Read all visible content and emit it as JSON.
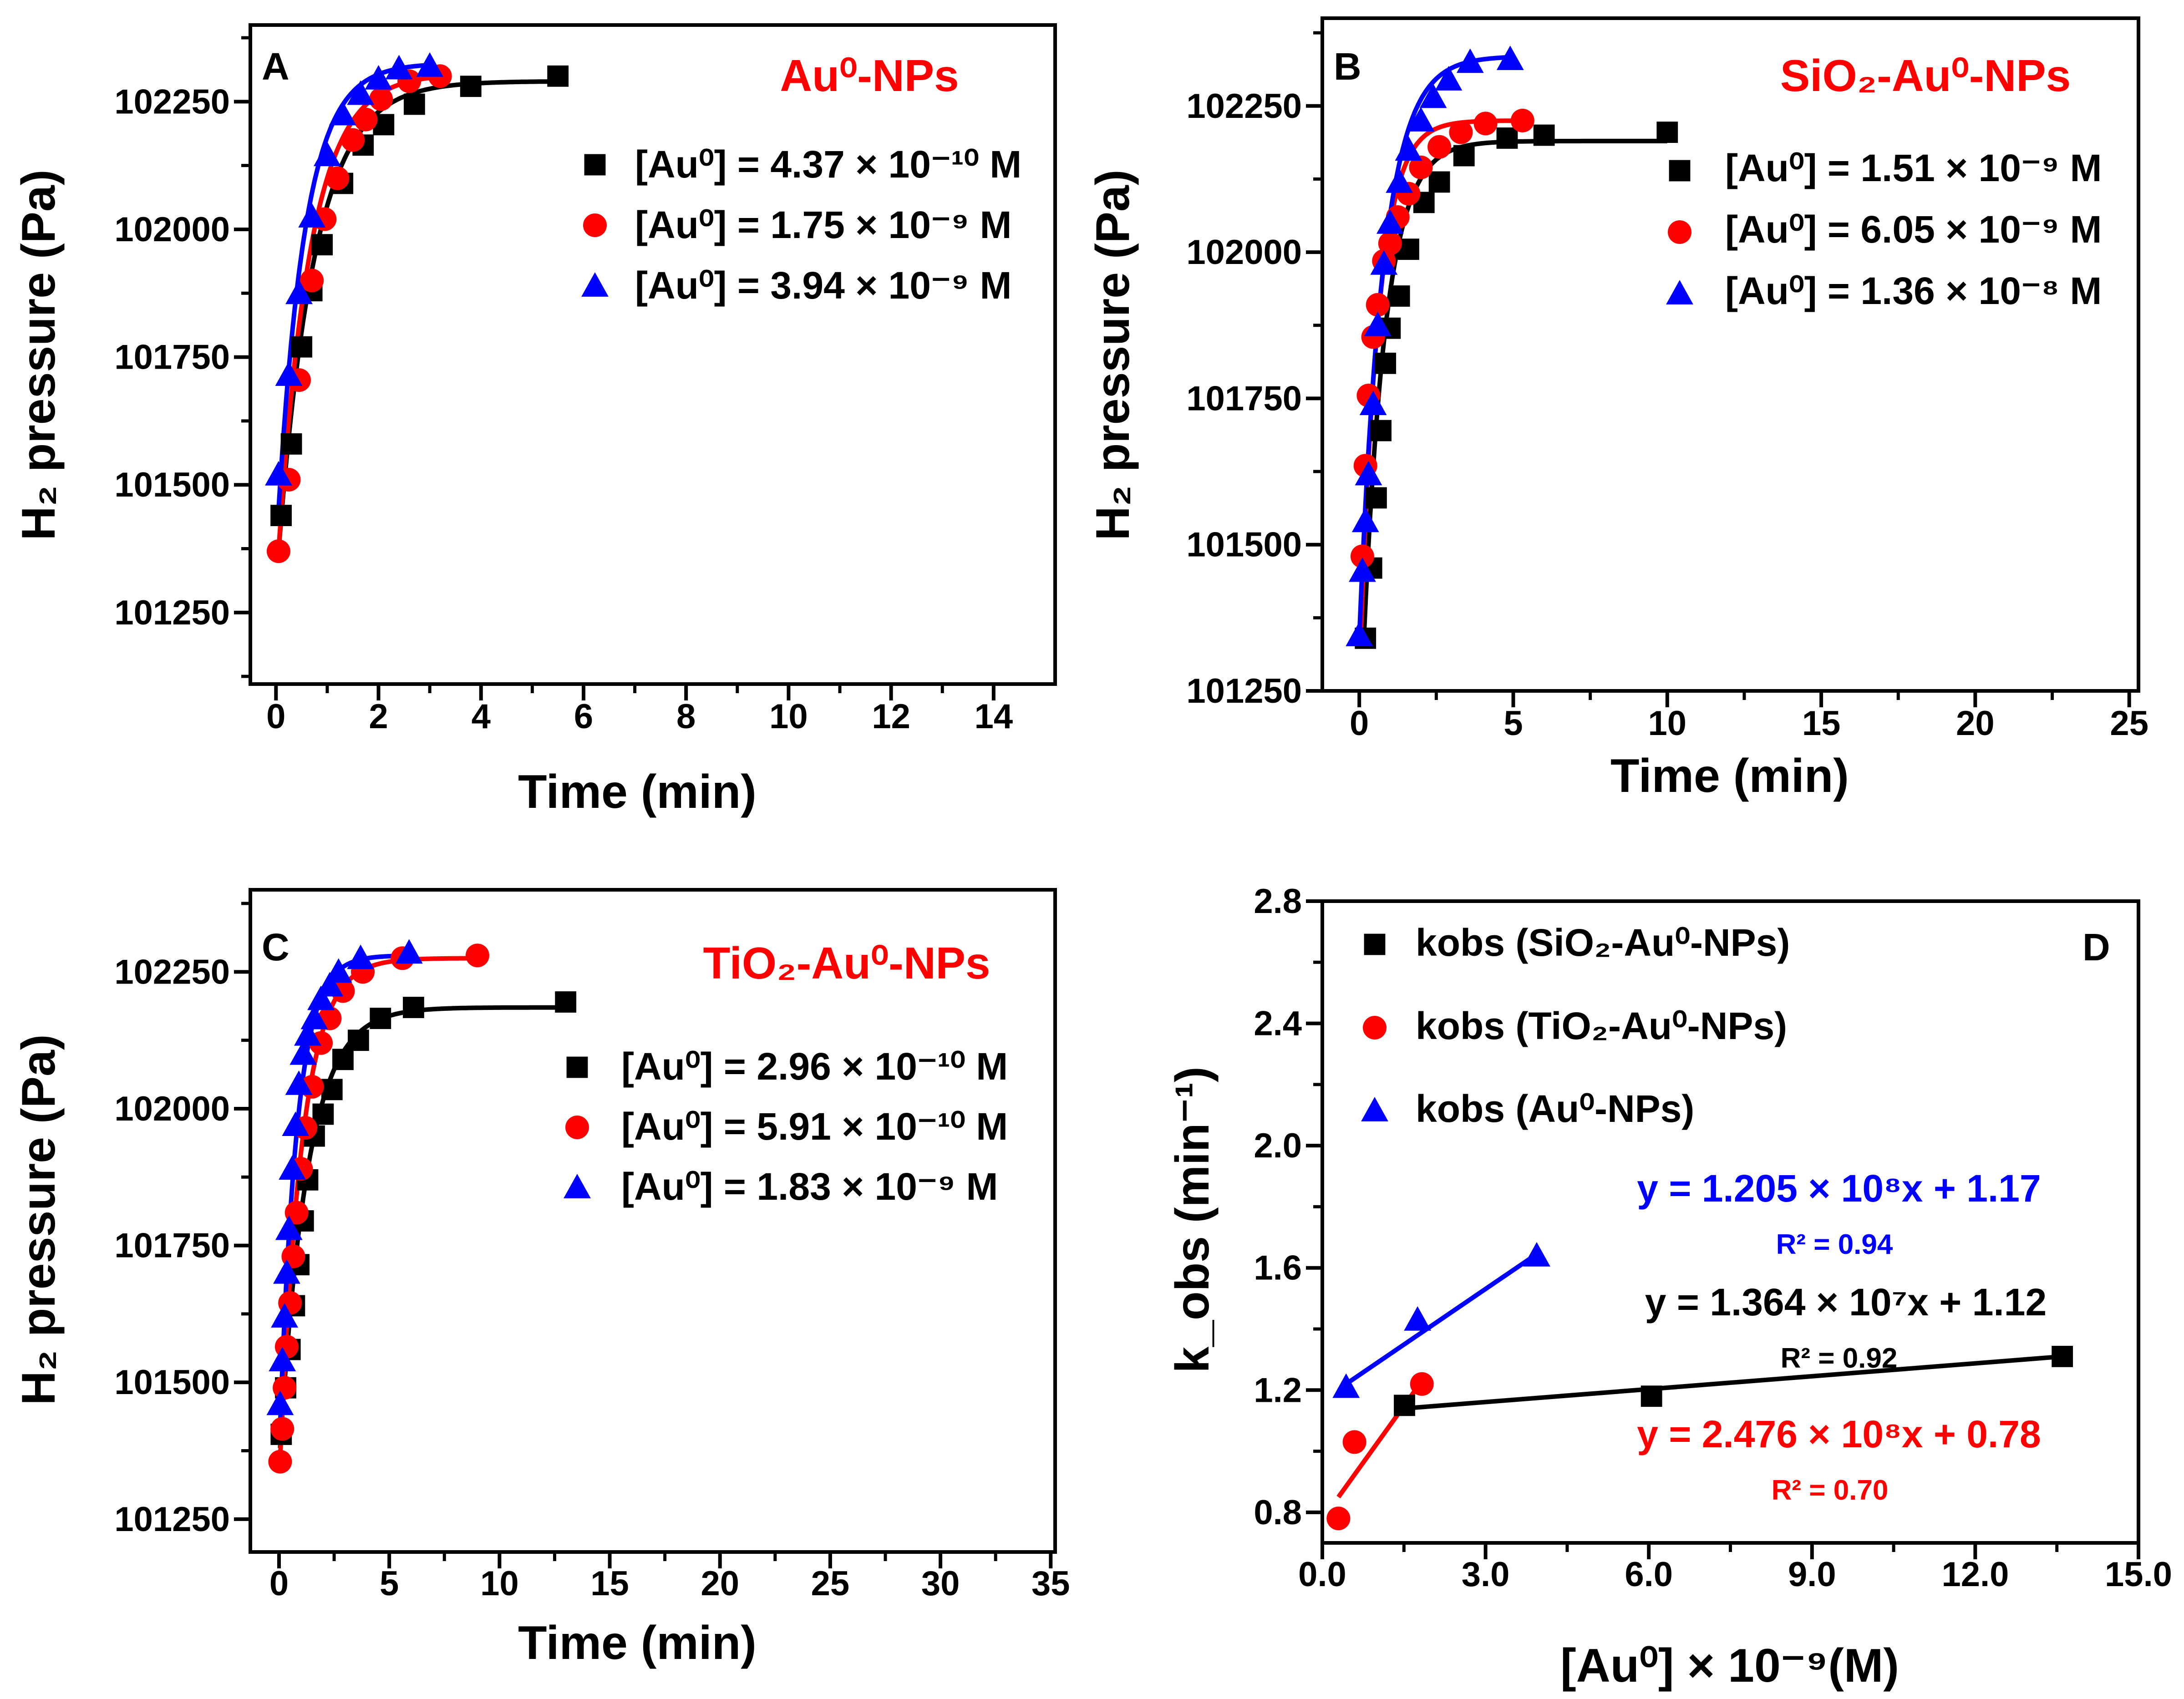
{
  "colors": {
    "black": "#000000",
    "red": "#ff0000",
    "blue": "#0000ff"
  },
  "chart_data": [
    {
      "type": "scatter",
      "panel_label": "A",
      "title": "Au⁰-NPs",
      "xlabel": "Time (min)",
      "ylabel": "H₂ pressure (Pa)",
      "xlim": [
        -0.5,
        15.2
      ],
      "ylim": [
        101110,
        102400
      ],
      "xticks": [
        0,
        2,
        4,
        6,
        8,
        10,
        12,
        14
      ],
      "yticks": [
        101250,
        101500,
        101750,
        102000,
        102250
      ],
      "xticklabels": [
        "0",
        "2",
        "4",
        "6",
        "8",
        "10",
        "12",
        "14"
      ],
      "yticklabels": [
        "101250",
        "101500",
        "101750",
        "102000",
        "102250"
      ],
      "series": [
        {
          "name": "[Au⁰] = 4.37 × 10⁻¹⁰ M",
          "legend_text": "[Au⁰] = 4.37 × 10⁻¹⁰ M",
          "marker": "square",
          "color": "black",
          "x": [
            0.1,
            0.3,
            0.5,
            0.7,
            0.9,
            1.3,
            1.7,
            2.1,
            2.7,
            3.8,
            5.5
          ],
          "y": [
            101440,
            101580,
            101770,
            101880,
            101970,
            102090,
            102165,
            102205,
            102245,
            102280,
            102300
          ],
          "fit": {
            "pmin": 101370,
            "pmax": 102290,
            "k": 1.4,
            "x0": 0.05,
            "x1": 5.5
          }
        },
        {
          "name": "[Au⁰] = 1.75 × 10⁻⁹ M",
          "legend_text": "[Au⁰] = 1.75 × 10⁻⁹ M",
          "marker": "circle",
          "color": "red",
          "x": [
            0.05,
            0.25,
            0.45,
            0.7,
            0.95,
            1.2,
            1.5,
            1.75,
            2.05,
            2.6,
            3.2
          ],
          "y": [
            101370,
            101510,
            101705,
            101900,
            102020,
            102100,
            102175,
            102215,
            102255,
            102290,
            102300
          ],
          "fit": {
            "pmin": 101370,
            "pmax": 102305,
            "k": 1.6,
            "x0": 0.05,
            "x1": 3.3
          }
        },
        {
          "name": "[Au⁰] = 3.94 × 10⁻⁹ M",
          "legend_text": "[Au⁰] = 3.94 × 10⁻⁹ M",
          "marker": "triangle",
          "color": "blue",
          "x": [
            0.05,
            0.25,
            0.45,
            0.7,
            1.0,
            1.3,
            1.65,
            2.0,
            2.4,
            3.0
          ],
          "y": [
            101520,
            101715,
            101875,
            102025,
            102145,
            102225,
            102265,
            102295,
            102315,
            102320
          ],
          "fit": {
            "pmin": 101450,
            "pmax": 102325,
            "k": 1.9,
            "x0": 0.05,
            "x1": 3.0
          }
        }
      ]
    },
    {
      "type": "scatter",
      "panel_label": "B",
      "title": "SiO₂-Au⁰-NPs",
      "xlabel": "Time (min)",
      "ylabel": "H₂ pressure (Pa)",
      "xlim": [
        -1.2,
        25.3
      ],
      "ylim": [
        101250,
        102400
      ],
      "xticks": [
        0,
        5,
        10,
        15,
        20,
        25
      ],
      "yticks": [
        101250,
        101500,
        101750,
        102000,
        102250
      ],
      "xticklabels": [
        "0",
        "5",
        "10",
        "15",
        "20",
        "25"
      ],
      "yticklabels": [
        "101250",
        "101500",
        "101750",
        "102000",
        "102250"
      ],
      "series": [
        {
          "name": "[Au⁰] = 1.51 × 10⁻⁹ M",
          "legend_text": "[Au⁰] = 1.51 × 10⁻⁹ M",
          "marker": "square",
          "color": "black",
          "x": [
            0.2,
            0.4,
            0.55,
            0.7,
            0.85,
            1.0,
            1.3,
            1.6,
            2.1,
            2.6,
            3.4,
            4.8,
            6.0,
            10.0
          ],
          "y": [
            101340,
            101460,
            101580,
            101695,
            101810,
            101870,
            101925,
            102005,
            102085,
            102120,
            102165,
            102195,
            102200,
            102205
          ],
          "fit": {
            "pmin": 101340,
            "pmax": 102190,
            "k": 1.4,
            "x0": 0.15,
            "x1": 10.0
          }
        },
        {
          "name": "[Au⁰] = 6.05 × 10⁻⁹ M",
          "legend_text": "[Au⁰] = 6.05 × 10⁻⁹ M",
          "marker": "circle",
          "color": "red",
          "x": [
            0.1,
            0.2,
            0.3,
            0.45,
            0.6,
            0.8,
            1.0,
            1.25,
            1.6,
            2.0,
            2.6,
            3.3,
            4.1,
            5.3
          ],
          "y": [
            101480,
            101635,
            101755,
            101855,
            101910,
            101985,
            102015,
            102060,
            102100,
            102145,
            102180,
            102205,
            102220,
            102225
          ],
          "fit": {
            "pmin": 101340,
            "pmax": 102225,
            "k": 1.7,
            "x0": 0.05,
            "x1": 5.4
          }
        },
        {
          "name": "[Au⁰] = 1.36 × 10⁻⁸ M",
          "legend_text": "[Au⁰] = 1.36 × 10⁻⁸ M",
          "marker": "triangle",
          "color": "blue",
          "x": [
            0.0,
            0.1,
            0.2,
            0.3,
            0.45,
            0.6,
            0.8,
            1.0,
            1.3,
            1.6,
            2.0,
            2.4,
            2.9,
            3.6,
            4.9
          ],
          "y": [
            101345,
            101455,
            101540,
            101620,
            101740,
            101875,
            101980,
            102050,
            102120,
            102175,
            102225,
            102265,
            102295,
            102325,
            102330
          ],
          "fit": {
            "pmin": 101340,
            "pmax": 102335,
            "k": 1.3,
            "x0": 0.0,
            "x1": 5.0
          }
        }
      ]
    },
    {
      "type": "scatter",
      "panel_label": "C",
      "title": "TiO₂-Au⁰-NPs",
      "xlabel": "Time (min)",
      "ylabel": "H₂ pressure (Pa)",
      "xlim": [
        -1.3,
        35.2
      ],
      "ylim": [
        101190,
        102400
      ],
      "xticks": [
        0,
        5,
        10,
        15,
        20,
        25,
        30,
        35
      ],
      "yticks": [
        101250,
        101500,
        101750,
        102000,
        102250
      ],
      "xticklabels": [
        "0",
        "5",
        "10",
        "15",
        "20",
        "25",
        "30",
        "35"
      ],
      "yticklabels": [
        "101250",
        "101500",
        "101750",
        "102000",
        "102250"
      ],
      "series": [
        {
          "name": "[Au⁰] = 2.96 × 10⁻¹⁰ M",
          "legend_text": "[Au⁰] = 2.96 × 10⁻¹⁰ M",
          "marker": "square",
          "color": "black",
          "x": [
            0.1,
            0.3,
            0.5,
            0.7,
            0.9,
            1.1,
            1.3,
            1.6,
            2.0,
            2.4,
            2.9,
            3.6,
            4.6,
            6.1,
            13.0
          ],
          "y": [
            101405,
            101490,
            101560,
            101640,
            101715,
            101795,
            101870,
            101950,
            101990,
            102035,
            102090,
            102125,
            102165,
            102185,
            102195
          ],
          "fit": {
            "pmin": 101380,
            "pmax": 102185,
            "k": 0.8,
            "x0": 0.05,
            "x1": 13.0
          }
        },
        {
          "name": "[Au⁰] = 5.91 × 10⁻¹⁰ M",
          "legend_text": "[Au⁰] = 5.91 × 10⁻¹⁰ M",
          "marker": "circle",
          "color": "red",
          "x": [
            0.05,
            0.15,
            0.25,
            0.35,
            0.5,
            0.65,
            0.8,
            1.0,
            1.2,
            1.5,
            1.9,
            2.3,
            2.9,
            3.8,
            5.6,
            9.0
          ],
          "y": [
            101355,
            101415,
            101490,
            101565,
            101645,
            101730,
            101810,
            101890,
            101965,
            102040,
            102120,
            102165,
            102215,
            102250,
            102275,
            102280
          ],
          "fit": {
            "pmin": 101360,
            "pmax": 102275,
            "k": 1.0,
            "x0": 0.05,
            "x1": 9.0
          }
        },
        {
          "name": "[Au⁰] = 1.83 × 10⁻⁹ M",
          "legend_text": "[Au⁰] = 1.83 × 10⁻⁹ M",
          "marker": "triangle",
          "color": "blue",
          "x": [
            0.05,
            0.15,
            0.25,
            0.35,
            0.45,
            0.6,
            0.75,
            0.9,
            1.1,
            1.3,
            1.6,
            1.9,
            2.3,
            2.7,
            3.7,
            5.9
          ],
          "y": [
            101460,
            101540,
            101620,
            101700,
            101780,
            101890,
            101970,
            102045,
            102100,
            102135,
            102165,
            102200,
            102225,
            102250,
            102275,
            102285
          ],
          "fit": {
            "pmin": 101420,
            "pmax": 102280,
            "k": 1.3,
            "x0": 0.05,
            "x1": 6.0
          }
        }
      ]
    },
    {
      "type": "scatter",
      "panel_label": "D",
      "title": "",
      "xlabel": "[Au⁰] × 10⁻⁹(M)",
      "ylabel": "k_obs (min⁻¹)",
      "xlim": [
        0,
        15
      ],
      "ylim": [
        0.7,
        2.8
      ],
      "xticks": [
        0,
        3,
        6,
        9,
        12,
        15
      ],
      "yticks": [
        0.8,
        1.2,
        1.6,
        2.0,
        2.4,
        2.8
      ],
      "xticklabels": [
        "0.0",
        "3.0",
        "6.0",
        "9.0",
        "12.0",
        "15.0"
      ],
      "yticklabels": [
        "0.8",
        "1.2",
        "1.6",
        "2.0",
        "2.4",
        "2.8"
      ],
      "series": [
        {
          "name": "k_obs (SiO₂-Au⁰-NPs)",
          "legend_text": "kobs (SiO₂-Au⁰-NPs)",
          "marker": "square",
          "color": "black",
          "x": [
            1.51,
            6.05,
            13.6
          ],
          "y": [
            1.15,
            1.18,
            1.31
          ],
          "fit_line": {
            "x0": 1.51,
            "y0": 1.14,
            "x1": 13.6,
            "y1": 1.31
          }
        },
        {
          "name": "k_obs (TiO₂-Au⁰-NPs)",
          "legend_text": "kobs (TiO₂-Au⁰-NPs)",
          "marker": "circle",
          "color": "red",
          "x": [
            0.296,
            0.591,
            1.83
          ],
          "y": [
            0.78,
            1.03,
            1.22
          ],
          "fit_line": {
            "x0": 0.296,
            "y0": 0.85,
            "x1": 1.83,
            "y1": 1.23
          }
        },
        {
          "name": "k_obs (Au⁰-NPs)",
          "legend_text": "kobs (Au⁰-NPs)",
          "marker": "triangle",
          "color": "blue",
          "x": [
            0.437,
            1.75,
            3.94
          ],
          "y": [
            1.21,
            1.43,
            1.64
          ],
          "fit_line": {
            "x0": 0.437,
            "y0": 1.22,
            "x1": 3.94,
            "y1": 1.645
          }
        }
      ],
      "annotations": [
        {
          "text": "y = 1.205 × 10⁸x + 1.17",
          "color": "blue"
        },
        {
          "text": "R² = 0.94",
          "color": "blue"
        },
        {
          "text": "y = 1.364 × 10⁷x + 1.12",
          "color": "black"
        },
        {
          "text": "R² = 0.92",
          "color": "black"
        },
        {
          "text": "y = 2.476 × 10⁸x + 0.78",
          "color": "red"
        },
        {
          "text": "R² = 0.70",
          "color": "red"
        }
      ]
    }
  ]
}
